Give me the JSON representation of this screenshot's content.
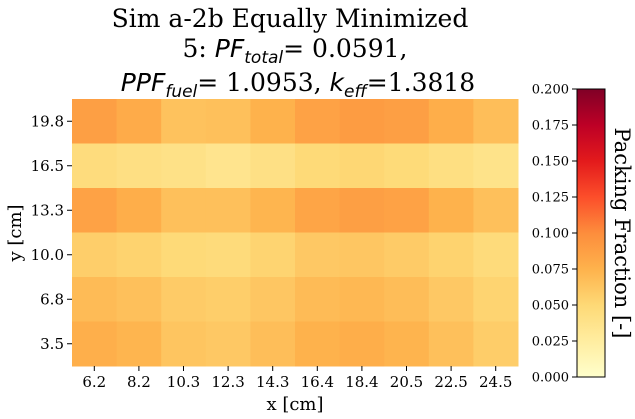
{
  "chart_data": {
    "type": "heatmap",
    "title": {
      "line1": "Sim a-2b Equally Minimized",
      "line2_prefix": "5: ",
      "pf_symbol": "PF",
      "pf_sub": "total",
      "pf_value": "= 0.0591,",
      "ppf_symbol": "PPF",
      "ppf_sub": "fuel",
      "ppf_value": "= 1.0953, ",
      "k_symbol": "k",
      "k_sub": "eff",
      "k_value": "=1.3818"
    },
    "xlabel": "x [cm]",
    "ylabel": "y [cm]",
    "x_ticks": [
      "6.2",
      "8.2",
      "10.3",
      "12.3",
      "14.3",
      "16.4",
      "18.4",
      "20.5",
      "22.5",
      "24.5"
    ],
    "y_ticks": [
      "19.8",
      "16.5",
      "13.3",
      "10.0",
      "6.8",
      "3.5"
    ],
    "values": [
      [
        0.088,
        0.08,
        0.065,
        0.066,
        0.075,
        0.086,
        0.09,
        0.088,
        0.078,
        0.067
      ],
      [
        0.046,
        0.042,
        0.04,
        0.036,
        0.041,
        0.049,
        0.051,
        0.048,
        0.043,
        0.038
      ],
      [
        0.086,
        0.078,
        0.066,
        0.066,
        0.073,
        0.084,
        0.088,
        0.086,
        0.075,
        0.066
      ],
      [
        0.057,
        0.054,
        0.049,
        0.047,
        0.053,
        0.061,
        0.062,
        0.059,
        0.054,
        0.047
      ],
      [
        0.069,
        0.066,
        0.059,
        0.057,
        0.062,
        0.069,
        0.071,
        0.068,
        0.061,
        0.053
      ],
      [
        0.077,
        0.073,
        0.063,
        0.061,
        0.067,
        0.075,
        0.078,
        0.074,
        0.066,
        0.058
      ]
    ],
    "colorbar": {
      "label": "Packing Fraction [-]",
      "range": [
        0.0,
        0.2
      ],
      "ticks": [
        "0.000",
        "0.025",
        "0.050",
        "0.075",
        "0.100",
        "0.125",
        "0.150",
        "0.175",
        "0.200"
      ],
      "colormap": "YlOrRd",
      "colors": [
        "#ffffcc",
        "#ffeda0",
        "#fed976",
        "#feb24c",
        "#fd8d3c",
        "#fc4e2a",
        "#e31a1c",
        "#bd0026",
        "#800026"
      ]
    },
    "grid": false
  }
}
